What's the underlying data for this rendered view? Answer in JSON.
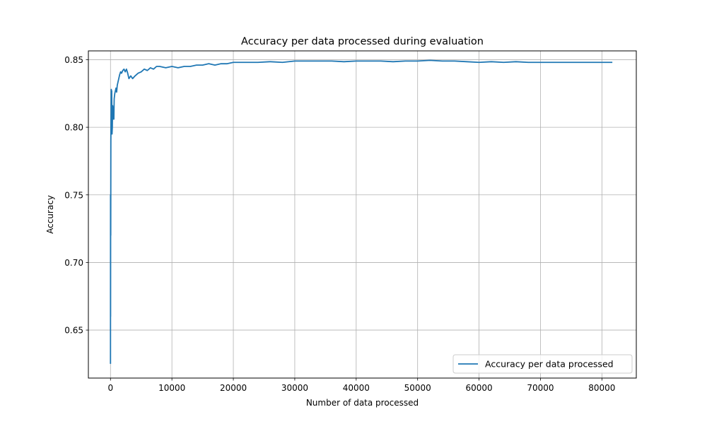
{
  "chart_data": {
    "type": "line",
    "title": "Accuracy per data processed during evaluation",
    "xlabel": "Number of data processed",
    "ylabel": "Accuracy",
    "xlim": [
      -3600,
      85600
    ],
    "ylim": [
      0.6145,
      0.8565
    ],
    "x_ticks": [
      0,
      10000,
      20000,
      30000,
      40000,
      50000,
      60000,
      70000,
      80000
    ],
    "x_tick_labels": [
      "0",
      "10000",
      "20000",
      "30000",
      "40000",
      "50000",
      "60000",
      "70000",
      "80000"
    ],
    "y_ticks": [
      0.65,
      0.7,
      0.75,
      0.8,
      0.85
    ],
    "y_tick_labels": [
      "0.65",
      "0.70",
      "0.75",
      "0.80",
      "0.85"
    ],
    "grid": true,
    "legend_position": "lower-right",
    "series": [
      {
        "name": "Accuracy per data processed",
        "color": "#1f77b4",
        "x": [
          0,
          8,
          15,
          25,
          40,
          60,
          80,
          100,
          130,
          160,
          200,
          250,
          300,
          350,
          400,
          450,
          500,
          550,
          600,
          700,
          800,
          900,
          1000,
          1100,
          1200,
          1350,
          1500,
          1650,
          1800,
          2000,
          2200,
          2400,
          2600,
          2800,
          3000,
          3300,
          3600,
          4000,
          4500,
          5000,
          5500,
          6000,
          6500,
          7000,
          7500,
          8000,
          9000,
          10000,
          11000,
          12000,
          13000,
          14000,
          15000,
          16000,
          17000,
          18000,
          19000,
          20000,
          21000,
          22000,
          24000,
          26000,
          28000,
          30000,
          32000,
          34000,
          36000,
          38000,
          40000,
          42000,
          44000,
          46000,
          48000,
          50000,
          52000,
          54000,
          56000,
          58000,
          60000,
          62000,
          64000,
          66000,
          68000,
          70000,
          72000,
          74000,
          76000,
          78000,
          80000,
          81700
        ],
        "y": [
          0.625,
          0.75,
          0.66,
          0.75,
          0.72,
          0.79,
          0.8,
          0.812,
          0.828,
          0.813,
          0.827,
          0.795,
          0.8,
          0.816,
          0.806,
          0.812,
          0.815,
          0.806,
          0.821,
          0.825,
          0.827,
          0.829,
          0.826,
          0.831,
          0.833,
          0.836,
          0.839,
          0.841,
          0.84,
          0.842,
          0.843,
          0.841,
          0.843,
          0.84,
          0.836,
          0.838,
          0.836,
          0.838,
          0.84,
          0.841,
          0.843,
          0.842,
          0.844,
          0.843,
          0.845,
          0.845,
          0.844,
          0.845,
          0.844,
          0.845,
          0.845,
          0.846,
          0.846,
          0.847,
          0.846,
          0.847,
          0.847,
          0.848,
          0.848,
          0.848,
          0.848,
          0.8485,
          0.848,
          0.849,
          0.849,
          0.849,
          0.849,
          0.8485,
          0.849,
          0.849,
          0.849,
          0.8485,
          0.849,
          0.849,
          0.8495,
          0.849,
          0.849,
          0.8485,
          0.848,
          0.8485,
          0.848,
          0.8485,
          0.848,
          0.848,
          0.848,
          0.848,
          0.848,
          0.848,
          0.848,
          0.848
        ]
      }
    ]
  }
}
